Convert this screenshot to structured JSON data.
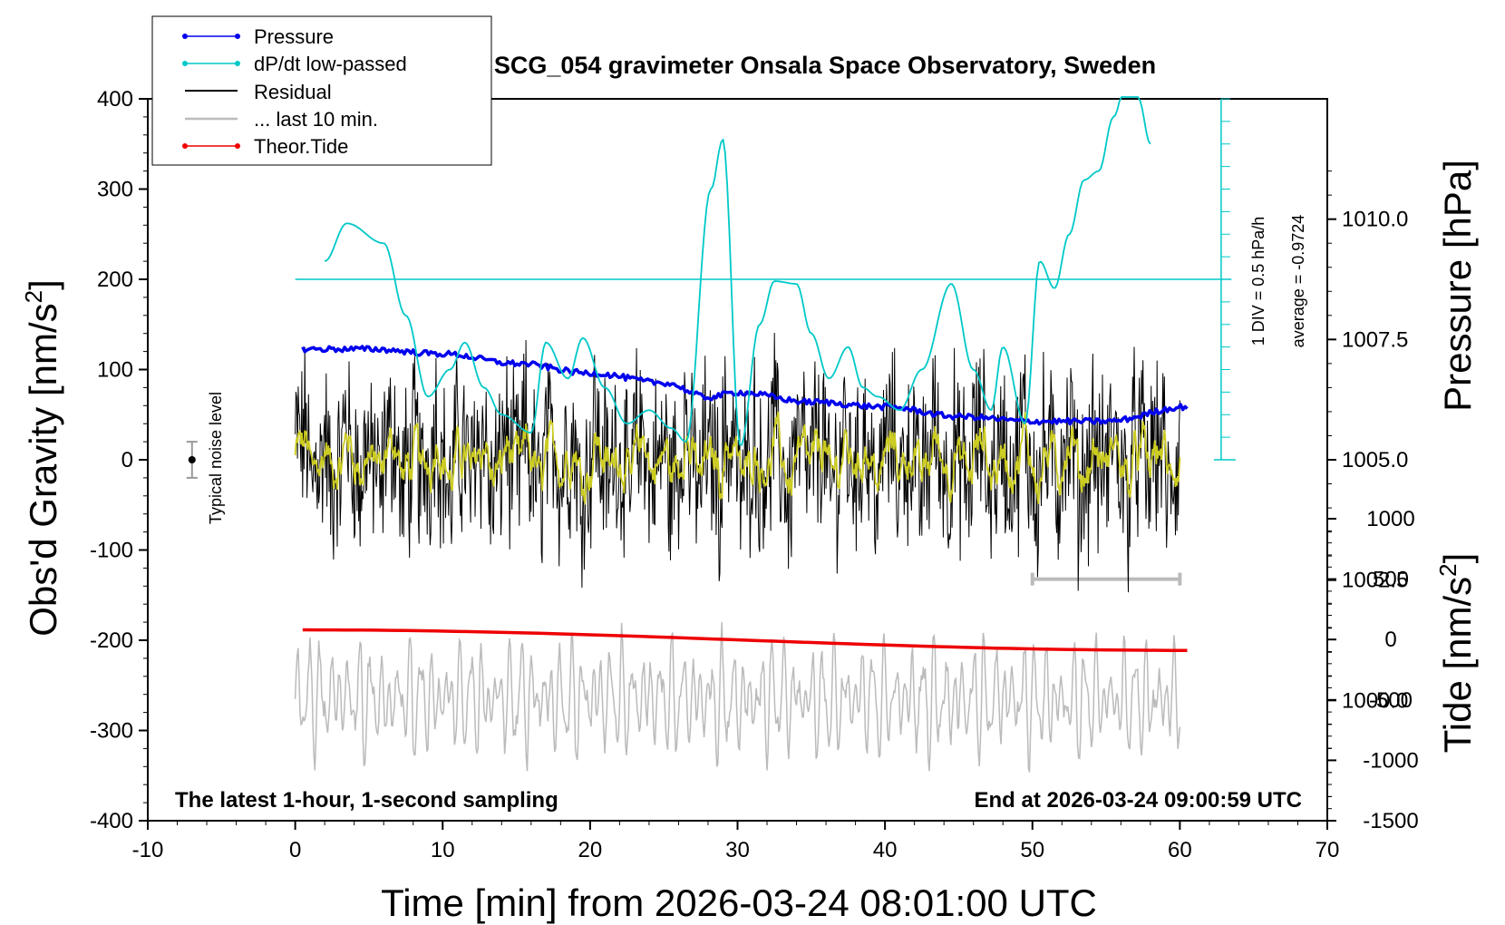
{
  "chart_data": {
    "type": "line",
    "title": "SCG_054 gravimeter Onsala Space Observatory, Sweden",
    "xlabel": "Time [min] from 2026-03-24 08:01:00 UTC",
    "ylabel_left": "Obs'd Gravity [nm/s",
    "ylabel_right_top": "Pressure [hPa]",
    "ylabel_right_bottom": "Tide [nm/s",
    "unit_superscript": "2",
    "xlim": [
      -10,
      70
    ],
    "ylim": [
      -400,
      400
    ],
    "pressure_lim": [
      997.5,
      1012.5
    ],
    "tide_lim": [
      -1500,
      1000
    ],
    "x_ticks": [
      "-10",
      "0",
      "10",
      "20",
      "30",
      "40",
      "50",
      "60",
      "70"
    ],
    "y_ticks": [
      "-400",
      "-300",
      "-200",
      "-100",
      "0",
      "100",
      "200",
      "300",
      "400"
    ],
    "pressure_ticks": [
      "1000.0",
      "1002.5",
      "1005.0",
      "1007.5",
      "1010.0"
    ],
    "tide_ticks": [
      "-1500",
      "-1000",
      "-500",
      "0",
      "500",
      "1000"
    ],
    "legend": [
      "Pressure",
      "dP/dt low-passed",
      "Residual",
      "... last 10 min.",
      "Theor.Tide"
    ],
    "legend_position": "top-left",
    "footer_left": "The latest 1-hour, 1-second sampling",
    "footer_right": "End at 2026-03-24 09:00:59 UTC",
    "noise_label": "Typical noise level",
    "dpdt_scale_label": "1 DIV = 0.5 hPa/h",
    "dpdt_average_label": "average = -0.9724",
    "colors": {
      "pressure": "#0000ee",
      "dpdt": "#00c8c8",
      "residual": "#000000",
      "last10": "#bbbbbb",
      "tide": "#ee0000",
      "smoothed": "#cccc22"
    },
    "series": [
      {
        "name": "Pressure",
        "axis": "pressure",
        "x": [
          0.5,
          5,
          10,
          15,
          20,
          25,
          28,
          30,
          35,
          40,
          45,
          50,
          55,
          60.5
        ],
        "values": [
          1007.3,
          1007.3,
          1007.2,
          1007.0,
          1006.8,
          1006.6,
          1006.3,
          1006.4,
          1006.2,
          1006.1,
          1005.9,
          1005.8,
          1005.8,
          1006.1
        ]
      },
      {
        "name": "dP/dt low-passed",
        "axis": "gravity",
        "x": [
          2,
          3.5,
          6,
          7.5,
          9,
          10.5,
          11.5,
          12.8,
          14,
          16,
          17,
          18.5,
          19.5,
          21,
          22.5,
          24,
          25.5,
          26.5,
          28.2,
          29,
          30.2,
          31.5,
          32.5,
          34,
          35,
          36.2,
          37.5,
          38.5,
          39.5,
          41,
          42.5,
          44.5,
          46,
          47.2,
          48,
          49.5,
          50.5,
          51.5,
          52.5,
          53.5,
          54.5,
          55.5,
          56.5,
          57.2,
          58
        ],
        "values": [
          220,
          262,
          240,
          160,
          70,
          100,
          130,
          80,
          50,
          30,
          130,
          90,
          135,
          80,
          40,
          55,
          35,
          20,
          300,
          355,
          15,
          150,
          198,
          195,
          140,
          90,
          125,
          80,
          70,
          55,
          100,
          195,
          100,
          55,
          125,
          40,
          220,
          190,
          250,
          310,
          320,
          380,
          430,
          400,
          350
        ]
      },
      {
        "name": "Theor.Tide",
        "axis": "tide",
        "x": [
          0.5,
          60.5
        ],
        "values": [
          80,
          -90
        ]
      }
    ],
    "last10_bar": {
      "x": [
        50,
        60
      ],
      "value": 500
    },
    "noise_marker": {
      "x": -7,
      "value": 0,
      "error": 20
    }
  }
}
